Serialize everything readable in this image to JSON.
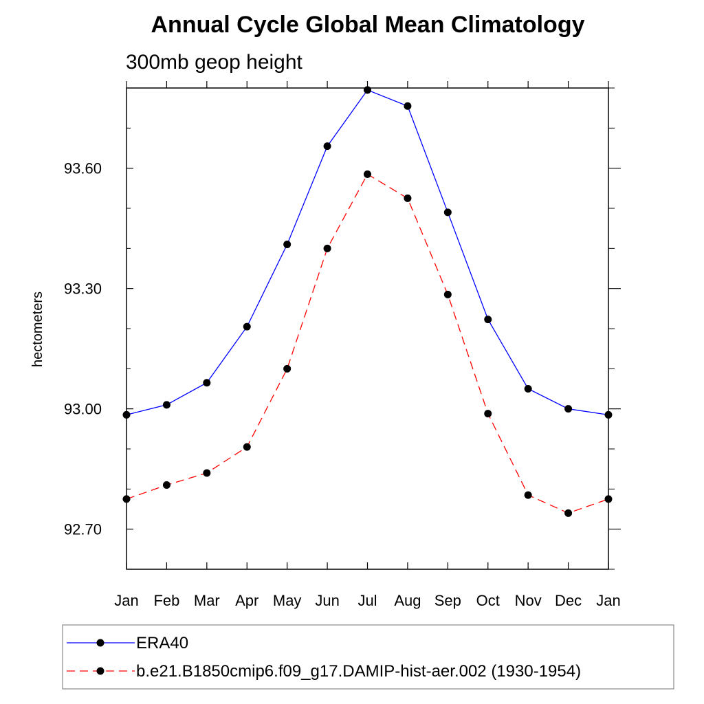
{
  "chart_data": {
    "type": "line",
    "title": "Annual Cycle Global Mean Climatology",
    "subtitle": "300mb geop height",
    "ylabel": "hectometers",
    "xlabel": "",
    "categories": [
      "Jan",
      "Feb",
      "Mar",
      "Apr",
      "May",
      "Jun",
      "Jul",
      "Aug",
      "Sep",
      "Oct",
      "Nov",
      "Dec",
      "Jan"
    ],
    "ylim": [
      92.6,
      93.8
    ],
    "yticks": [
      92.7,
      93.0,
      93.3,
      93.6
    ],
    "ytick_labels": [
      "92.70",
      "93.00",
      "93.30",
      "93.60"
    ],
    "grid": false,
    "legend_position": "bottom",
    "series": [
      {
        "name": "ERA40",
        "color": "#0000ff",
        "line_style": "solid",
        "marker": "filled-circle",
        "values": [
          92.985,
          93.01,
          93.065,
          93.205,
          93.41,
          93.655,
          93.795,
          93.755,
          93.49,
          93.223,
          93.05,
          93.0,
          92.985
        ]
      },
      {
        "name": "b.e21.B1850cmip6.f09_g17.DAMIP-hist-aer.002 (1930-1954)",
        "color": "#ff0000",
        "line_style": "dashed",
        "marker": "filled-circle",
        "values": [
          92.775,
          92.81,
          92.84,
          92.905,
          93.1,
          93.4,
          93.585,
          93.525,
          93.285,
          92.988,
          92.785,
          92.74,
          92.775
        ]
      }
    ]
  }
}
